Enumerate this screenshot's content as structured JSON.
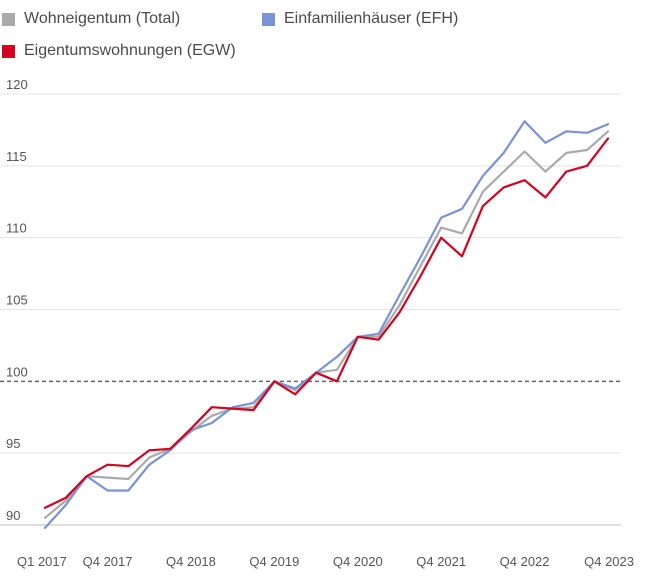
{
  "chart_data": {
    "type": "line",
    "title": "",
    "xlabel": "",
    "ylabel": "",
    "ylim": [
      90,
      120
    ],
    "yticks": [
      90,
      95,
      100,
      105,
      110,
      115,
      120
    ],
    "grid": true,
    "legend_position": "top-left",
    "reference_line": {
      "value": 100,
      "style": "dashed"
    },
    "x": [
      "Q1 2017",
      "Q2 2017",
      "Q3 2017",
      "Q4 2017",
      "Q1 2018",
      "Q2 2018",
      "Q3 2018",
      "Q4 2018",
      "Q1 2019",
      "Q2 2019",
      "Q3 2019",
      "Q4 2019",
      "Q1 2020",
      "Q2 2020",
      "Q3 2020",
      "Q4 2020",
      "Q1 2021",
      "Q2 2021",
      "Q3 2021",
      "Q4 2021",
      "Q1 2022",
      "Q2 2022",
      "Q3 2022",
      "Q4 2022",
      "Q1 2023",
      "Q2 2023",
      "Q3 2023",
      "Q4 2023"
    ],
    "xtick_labels": [
      "Q1 2017",
      "Q4 2017",
      "Q4 2018",
      "Q4 2019",
      "Q4 2020",
      "Q4 2021",
      "Q4 2022",
      "Q4 2023"
    ],
    "series": [
      {
        "name": "Wohneigentum (Total)",
        "color": "#aaaaaa",
        "values": [
          90.5,
          91.7,
          93.4,
          93.3,
          93.2,
          94.7,
          95.3,
          96.5,
          97.6,
          98.1,
          98.2,
          100.0,
          99.4,
          100.6,
          100.8,
          103.1,
          103.1,
          105.3,
          108.0,
          110.7,
          110.3,
          113.2,
          114.6,
          116.0,
          114.6,
          115.9,
          116.1,
          117.4
        ]
      },
      {
        "name": "Einfamilienhäuser (EFH)",
        "color": "#7a93d6",
        "values": [
          89.8,
          91.4,
          93.4,
          92.4,
          92.4,
          94.2,
          95.2,
          96.6,
          97.1,
          98.2,
          98.5,
          100.0,
          99.5,
          100.6,
          101.7,
          103.1,
          103.3,
          106.0,
          108.6,
          111.4,
          112.0,
          114.3,
          115.9,
          118.1,
          116.6,
          117.4,
          117.3,
          117.9
        ]
      },
      {
        "name": "Eigentumswohnungen (EGW)",
        "color": "#d4021f",
        "values": [
          91.2,
          91.9,
          93.4,
          94.2,
          94.1,
          95.2,
          95.3,
          96.7,
          98.2,
          98.1,
          98.0,
          100.0,
          99.1,
          100.6,
          100.0,
          103.1,
          102.9,
          104.8,
          107.3,
          110.0,
          108.7,
          112.2,
          113.5,
          114.0,
          112.8,
          114.6,
          115.0,
          116.9
        ]
      }
    ]
  }
}
